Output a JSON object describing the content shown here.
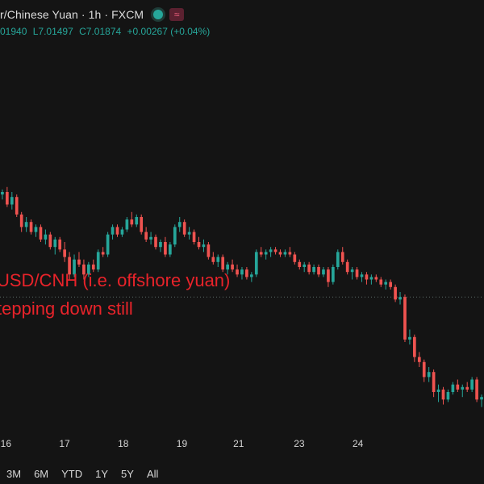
{
  "header": {
    "title": "r/Chinese Yuan · 1h · FXCM",
    "ohlc": {
      "open": "01940",
      "low": "L7.01497",
      "close": "C7.01874",
      "change": "+0.00267 (+0.04%)"
    }
  },
  "annotation": {
    "line1": "USD/CNH (i.e. offshore yuan)",
    "line2": "tepping down still"
  },
  "range_buttons": [
    "3M",
    "6M",
    "YTD",
    "1Y",
    "5Y",
    "All"
  ],
  "colors": {
    "background": "#141414",
    "up": "#26a69a",
    "down": "#ef5350",
    "annotation": "#e8232a",
    "ohlc_text": "#26a69a"
  },
  "chart_data": {
    "type": "candlestick",
    "x_tick_labels": [
      "16",
      "17",
      "18",
      "19",
      "21",
      "23",
      "24"
    ],
    "x_tick_positions": [
      2.2,
      14.2,
      26.2,
      38.2,
      49.8,
      62.2,
      74.2
    ],
    "y_range": [
      0,
      100
    ],
    "reference_line": 38,
    "grid": false,
    "candles": [
      [
        78,
        80,
        76,
        79
      ],
      [
        79,
        81,
        77,
        80
      ],
      [
        80,
        82,
        74,
        75
      ],
      [
        75,
        80,
        73,
        78
      ],
      [
        78,
        79,
        70,
        71
      ],
      [
        71,
        72,
        64,
        66
      ],
      [
        66,
        70,
        64,
        68
      ],
      [
        68,
        69,
        63,
        64
      ],
      [
        64,
        67,
        62,
        66
      ],
      [
        66,
        67,
        60,
        61
      ],
      [
        61,
        65,
        59,
        63
      ],
      [
        63,
        64,
        57,
        58
      ],
      [
        58,
        62,
        55,
        61
      ],
      [
        61,
        62,
        56,
        57
      ],
      [
        57,
        60,
        52,
        54
      ],
      [
        54,
        56,
        45,
        47
      ],
      [
        47,
        55,
        46,
        53
      ],
      [
        53,
        56,
        50,
        51
      ],
      [
        51,
        53,
        45,
        47
      ],
      [
        47,
        52,
        46,
        51
      ],
      [
        51,
        53,
        48,
        49
      ],
      [
        49,
        57,
        48,
        56
      ],
      [
        56,
        58,
        54,
        55
      ],
      [
        55,
        64,
        54,
        63
      ],
      [
        63,
        67,
        61,
        66
      ],
      [
        66,
        67,
        62,
        63
      ],
      [
        63,
        66,
        62,
        65
      ],
      [
        65,
        70,
        64,
        69
      ],
      [
        69,
        72,
        66,
        67
      ],
      [
        67,
        71,
        66,
        70
      ],
      [
        70,
        71,
        63,
        64
      ],
      [
        64,
        66,
        60,
        61
      ],
      [
        61,
        64,
        59,
        62
      ],
      [
        62,
        63,
        57,
        58
      ],
      [
        58,
        61,
        56,
        60
      ],
      [
        60,
        62,
        54,
        55
      ],
      [
        55,
        60,
        54,
        59
      ],
      [
        59,
        67,
        58,
        66
      ],
      [
        66,
        70,
        64,
        68
      ],
      [
        68,
        69,
        62,
        63
      ],
      [
        63,
        66,
        61,
        64
      ],
      [
        64,
        65,
        59,
        60
      ],
      [
        60,
        62,
        57,
        58
      ],
      [
        58,
        61,
        56,
        59
      ],
      [
        59,
        60,
        53,
        54
      ],
      [
        54,
        56,
        51,
        52
      ],
      [
        52,
        55,
        50,
        54
      ],
      [
        54,
        55,
        48,
        49
      ],
      [
        49,
        52,
        47,
        51
      ],
      [
        51,
        53,
        48,
        49
      ],
      [
        49,
        51,
        46,
        47
      ],
      [
        47,
        50,
        45,
        49
      ],
      [
        49,
        50,
        45,
        46
      ],
      [
        46,
        48,
        44,
        47
      ],
      [
        47,
        57,
        46,
        56
      ],
      [
        56,
        58,
        54,
        55
      ],
      [
        55,
        57,
        53,
        56
      ],
      [
        56,
        58,
        54,
        57
      ],
      [
        57,
        58,
        55,
        56
      ],
      [
        56,
        57,
        54,
        55
      ],
      [
        55,
        57,
        54,
        56
      ],
      [
        56,
        58,
        54,
        55
      ],
      [
        55,
        56,
        51,
        52
      ],
      [
        52,
        53,
        49,
        50
      ],
      [
        50,
        52,
        48,
        51
      ],
      [
        51,
        52,
        47,
        48
      ],
      [
        48,
        51,
        47,
        50
      ],
      [
        50,
        51,
        46,
        47
      ],
      [
        47,
        50,
        46,
        49
      ],
      [
        49,
        50,
        42,
        44
      ],
      [
        44,
        51,
        43,
        50
      ],
      [
        50,
        57,
        49,
        56
      ],
      [
        56,
        58,
        51,
        52
      ],
      [
        52,
        53,
        47,
        48
      ],
      [
        48,
        50,
        45,
        49
      ],
      [
        49,
        50,
        45,
        46
      ],
      [
        46,
        48,
        44,
        47
      ],
      [
        47,
        48,
        43,
        45
      ],
      [
        45,
        47,
        43,
        46
      ],
      [
        46,
        47,
        44,
        45
      ],
      [
        45,
        46,
        42,
        43
      ],
      [
        43,
        45,
        41,
        44
      ],
      [
        44,
        45,
        41,
        42
      ],
      [
        42,
        43,
        36,
        37
      ],
      [
        37,
        40,
        35,
        38
      ],
      [
        38,
        39,
        20,
        21
      ],
      [
        21,
        25,
        19,
        22
      ],
      [
        22,
        23,
        12,
        14
      ],
      [
        14,
        16,
        10,
        12
      ],
      [
        12,
        13,
        4,
        6
      ],
      [
        6,
        10,
        4,
        8
      ],
      [
        8,
        9,
        -2,
        0
      ],
      [
        0,
        3,
        -4,
        1
      ],
      [
        1,
        2,
        -5,
        -3
      ],
      [
        -3,
        1,
        -4,
        0
      ],
      [
        0,
        4,
        -1,
        3
      ],
      [
        3,
        5,
        0,
        1
      ],
      [
        1,
        3,
        -2,
        2
      ],
      [
        2,
        4,
        0,
        1
      ],
      [
        1,
        6,
        0,
        5
      ],
      [
        5,
        6,
        -4,
        -3
      ],
      [
        -3,
        -1,
        -6,
        -2
      ]
    ]
  }
}
